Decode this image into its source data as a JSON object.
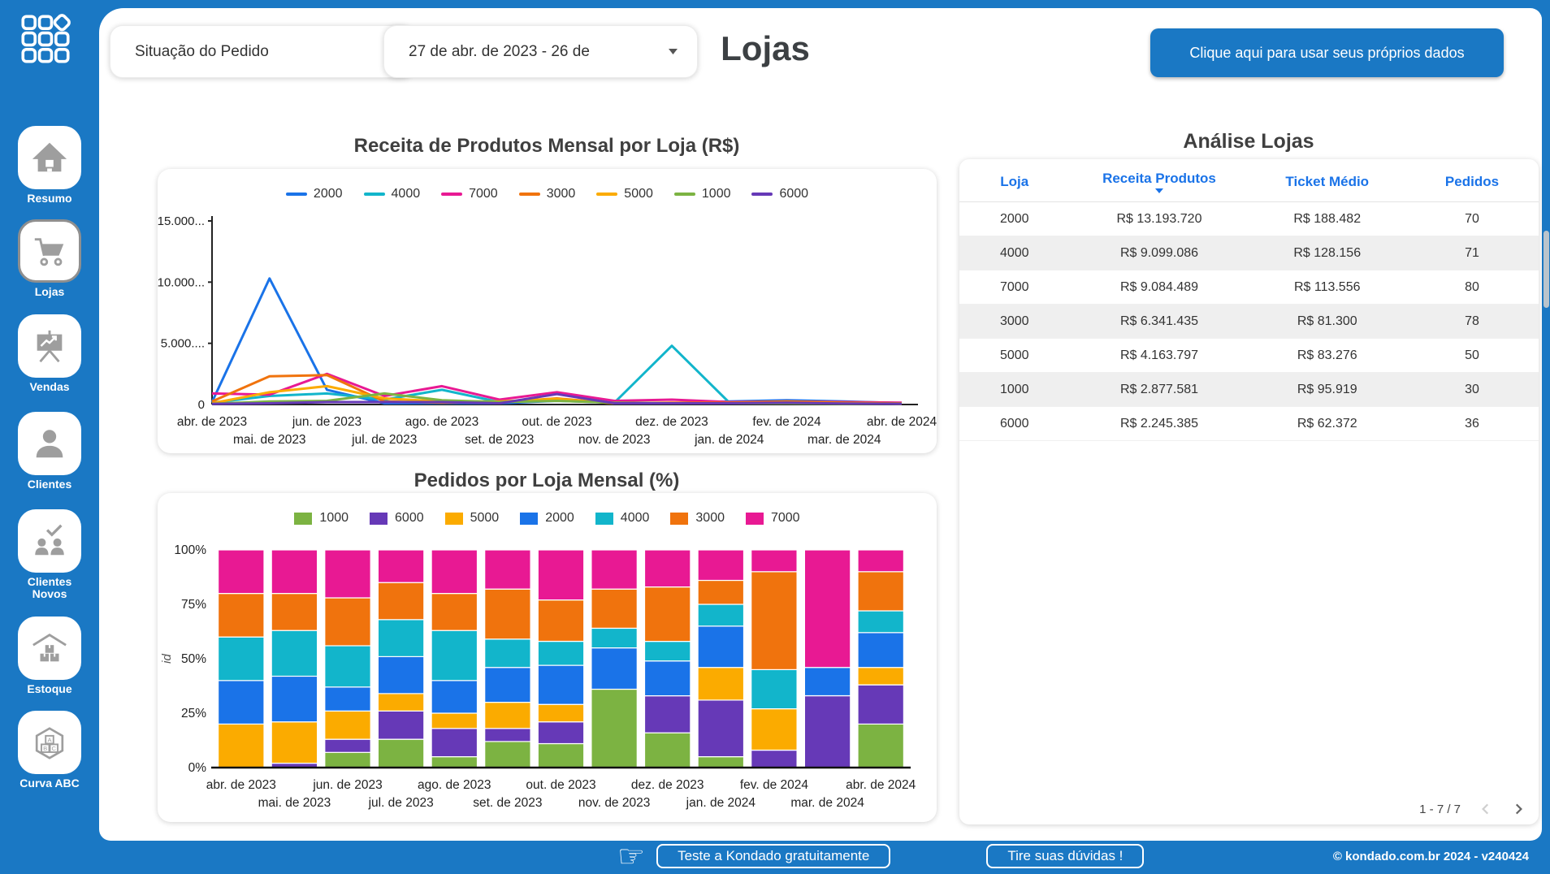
{
  "colors": {
    "brand": "#1a78c4",
    "accent_blue": "#1a73e8",
    "icon_gray": "#9e9e9e",
    "row_alt": "#efefef"
  },
  "header": {
    "filter_label": "Situação do Pedido",
    "date_range": "27 de abr. de 2023 - 26 de",
    "page_title": "Lojas",
    "cta_label": "Clique aqui para usar seus próprios dados"
  },
  "sidebar": {
    "items": [
      {
        "label": "Resumo",
        "icon": "home-icon",
        "selected": false
      },
      {
        "label": "Lojas",
        "icon": "cart-icon",
        "selected": true
      },
      {
        "label": "Vendas",
        "icon": "presentation-icon",
        "selected": false
      },
      {
        "label": "Clientes",
        "icon": "person-icon",
        "selected": false
      },
      {
        "label": "Clientes Novos",
        "icon": "people-check-icon",
        "selected": false
      },
      {
        "label": "Estoque",
        "icon": "warehouse-icon",
        "selected": false
      },
      {
        "label": "Curva ABC",
        "icon": "abc-hexagon-icon",
        "selected": false
      }
    ]
  },
  "chart_data": [
    {
      "type": "line",
      "title": "Receita de Produtos Mensal por Loja (R$)",
      "x": [
        "abr. de 2023",
        "mai. de 2023",
        "jun. de 2023",
        "jul. de 2023",
        "ago. de 2023",
        "set. de 2023",
        "out. de 2023",
        "nov. de 2023",
        "dez. de 2023",
        "jan. de 2024",
        "fev. de 2024",
        "mar. de 2024",
        "abr. de 2024"
      ],
      "ylim": [
        0,
        15000000
      ],
      "yticks": [
        {
          "v": 0,
          "label": "0"
        },
        {
          "v": 5000000,
          "label": "5.000...."
        },
        {
          "v": 10000000,
          "label": "10.000..."
        },
        {
          "v": 15000000,
          "label": "15.000..."
        }
      ],
      "grid": false,
      "legend_position": "top",
      "series": [
        {
          "name": "2000",
          "color": "#1a73e8",
          "values": [
            200000,
            10300000,
            1200000,
            100000,
            120000,
            100000,
            300000,
            150000,
            120000,
            250000,
            350000,
            250000,
            120000
          ]
        },
        {
          "name": "4000",
          "color": "#12b5cb",
          "values": [
            150000,
            700000,
            900000,
            400000,
            1200000,
            200000,
            350000,
            150000,
            4800000,
            150000,
            250000,
            150000,
            100000
          ]
        },
        {
          "name": "7000",
          "color": "#e81993",
          "values": [
            900000,
            800000,
            2500000,
            700000,
            1500000,
            400000,
            1000000,
            300000,
            400000,
            200000,
            250000,
            200000,
            150000
          ]
        },
        {
          "name": "3000",
          "color": "#f0730d",
          "values": [
            250000,
            2300000,
            2400000,
            250000,
            150000,
            200000,
            500000,
            100000,
            150000,
            150000,
            250000,
            150000,
            100000
          ]
        },
        {
          "name": "5000",
          "color": "#fbab00",
          "values": [
            100000,
            1000000,
            1500000,
            500000,
            250000,
            250000,
            450000,
            100000,
            100000,
            100000,
            150000,
            100000,
            60000
          ]
        },
        {
          "name": "1000",
          "color": "#7cb342",
          "values": [
            60000,
            250000,
            300000,
            900000,
            350000,
            200000,
            300000,
            150000,
            100000,
            100000,
            100000,
            60000,
            60000
          ]
        },
        {
          "name": "6000",
          "color": "#6639b7",
          "values": [
            50000,
            100000,
            200000,
            200000,
            200000,
            100000,
            850000,
            100000,
            100000,
            100000,
            150000,
            80000,
            60000
          ]
        }
      ]
    },
    {
      "type": "bar",
      "stacked": "percent",
      "title": "Pedidos por Loja Mensal (%)",
      "x": [
        "abr. de 2023",
        "mai. de 2023",
        "jun. de 2023",
        "jul. de 2023",
        "ago. de 2023",
        "set. de 2023",
        "out. de 2023",
        "nov. de 2023",
        "dez. de 2023",
        "jan. de 2024",
        "fev. de 2024",
        "mar. de 2024",
        "abr. de 2024"
      ],
      "ylabel": "id",
      "yticks_percent": [
        0,
        25,
        50,
        75,
        100
      ],
      "legend_position": "top",
      "series": [
        {
          "name": "1000",
          "color": "#7cb342",
          "values": [
            0,
            0,
            7,
            13,
            5,
            12,
            11,
            36,
            16,
            5,
            0,
            0,
            20
          ]
        },
        {
          "name": "6000",
          "color": "#6639b7",
          "values": [
            0,
            2,
            6,
            13,
            13,
            6,
            10,
            0,
            17,
            26,
            8,
            33,
            18
          ]
        },
        {
          "name": "5000",
          "color": "#fbab00",
          "values": [
            20,
            19,
            13,
            8,
            7,
            12,
            8,
            0,
            0,
            15,
            19,
            0,
            8
          ]
        },
        {
          "name": "2000",
          "color": "#1a73e8",
          "values": [
            20,
            21,
            11,
            17,
            15,
            16,
            18,
            19,
            16,
            19,
            0,
            13,
            16
          ]
        },
        {
          "name": "4000",
          "color": "#12b5cb",
          "values": [
            20,
            21,
            19,
            17,
            23,
            13,
            11,
            9,
            9,
            10,
            18,
            0,
            10
          ]
        },
        {
          "name": "3000",
          "color": "#f0730d",
          "values": [
            20,
            17,
            22,
            17,
            17,
            23,
            19,
            18,
            25,
            11,
            45,
            0,
            18
          ]
        },
        {
          "name": "7000",
          "color": "#e81993",
          "values": [
            20,
            20,
            22,
            15,
            20,
            18,
            23,
            18,
            17,
            14,
            10,
            54,
            10
          ]
        }
      ]
    }
  ],
  "table": {
    "title": "Análise Lojas",
    "columns": [
      "Loja",
      "Receita Produtos",
      "Ticket Médio",
      "Pedidos"
    ],
    "sorted_column": "Receita Produtos",
    "rows": [
      [
        "2000",
        "R$ 13.193.720",
        "R$ 188.482",
        "70"
      ],
      [
        "4000",
        "R$ 9.099.086",
        "R$ 128.156",
        "71"
      ],
      [
        "7000",
        "R$ 9.084.489",
        "R$ 113.556",
        "80"
      ],
      [
        "3000",
        "R$ 6.341.435",
        "R$ 81.300",
        "78"
      ],
      [
        "5000",
        "R$ 4.163.797",
        "R$ 83.276",
        "50"
      ],
      [
        "1000",
        "R$ 2.877.581",
        "R$ 95.919",
        "30"
      ],
      [
        "6000",
        "R$ 2.245.385",
        "R$ 62.372",
        "36"
      ]
    ],
    "pagination": "1 - 7 / 7"
  },
  "footer": {
    "cta1": "Teste a Kondado gratuitamente",
    "cta2": "Tire suas dúvidas !",
    "copyright": "© kondado.com.br 2024 - v240424"
  }
}
